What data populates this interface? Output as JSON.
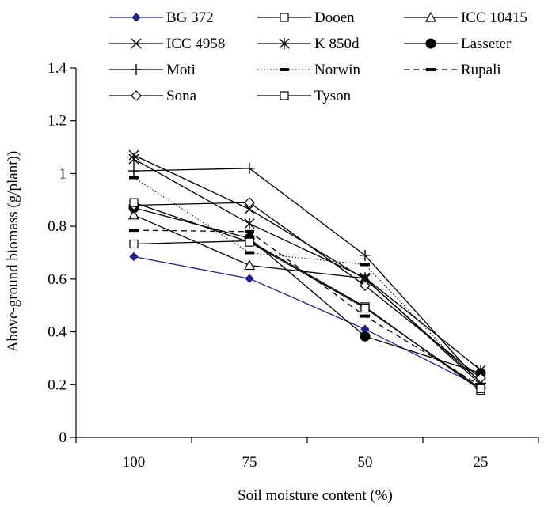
{
  "chart_data": {
    "type": "line",
    "xlabel": "Soil moisture content (%)",
    "ylabel": "Above-ground biomass (g/plant))",
    "categories": [
      "100",
      "75",
      "50",
      "25"
    ],
    "ylim": [
      0,
      1.4
    ],
    "yticks": [
      "0",
      "0.2",
      "0.4",
      "0.6",
      "0.8",
      "1",
      "1.2",
      "1.4"
    ],
    "grid": false,
    "legend_position": "top",
    "series": [
      {
        "name": "BG 372",
        "values": [
          0.685,
          0.602,
          0.41,
          0.19
        ],
        "color": "#1f1f8c",
        "marker": "diamond-filled",
        "dash": "solid"
      },
      {
        "name": "Dooen",
        "values": [
          0.733,
          0.745,
          0.495,
          0.178
        ],
        "color": "#000000",
        "marker": "square-open",
        "dash": "solid"
      },
      {
        "name": "ICC 10415",
        "values": [
          0.843,
          0.652,
          0.603,
          0.2
        ],
        "color": "#000000",
        "marker": "triangle-open",
        "dash": "solid"
      },
      {
        "name": "ICC 4958",
        "values": [
          1.07,
          0.865,
          0.6,
          0.21
        ],
        "color": "#000000",
        "marker": "x",
        "dash": "solid"
      },
      {
        "name": "K 850d",
        "values": [
          1.055,
          0.81,
          0.605,
          0.255
        ],
        "color": "#000000",
        "marker": "asterisk",
        "dash": "solid"
      },
      {
        "name": "Lasseter",
        "values": [
          0.87,
          0.755,
          0.383,
          0.243
        ],
        "color": "#000000",
        "marker": "circle-filled",
        "dash": "solid"
      },
      {
        "name": "Moti",
        "values": [
          1.01,
          1.02,
          0.69,
          0.205
        ],
        "color": "#000000",
        "marker": "plus",
        "dash": "solid"
      },
      {
        "name": "Norwin",
        "values": [
          0.985,
          0.7,
          0.655,
          0.195
        ],
        "color": "#000000",
        "marker": "dash",
        "dash": "dotted"
      },
      {
        "name": "Rupali",
        "values": [
          0.785,
          0.78,
          0.46,
          0.195
        ],
        "color": "#000000",
        "marker": "dash",
        "dash": "dashed"
      },
      {
        "name": "Sona",
        "values": [
          0.88,
          0.89,
          0.575,
          0.225
        ],
        "color": "#000000",
        "marker": "diamond-open",
        "dash": "solid"
      },
      {
        "name": "Tyson",
        "values": [
          0.89,
          0.74,
          0.49,
          0.185
        ],
        "color": "#000000",
        "marker": "square-open",
        "dash": "solid"
      }
    ]
  }
}
